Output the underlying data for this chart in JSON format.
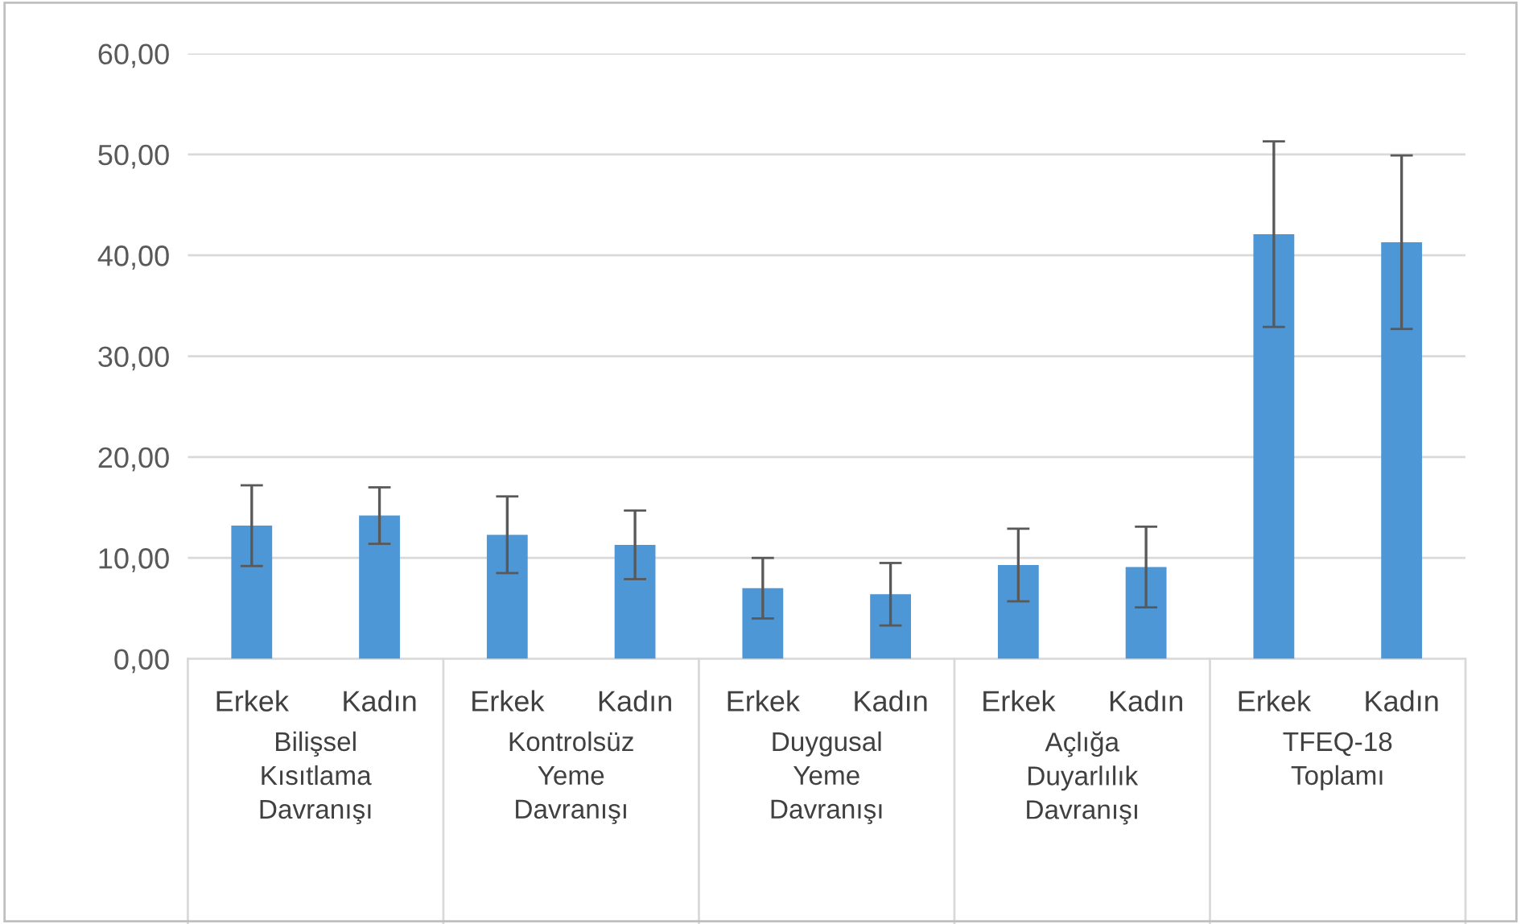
{
  "chart_data": {
    "type": "bar",
    "categories": [
      "Erkek",
      "Kadın",
      "Erkek",
      "Kadın",
      "Erkek",
      "Kadın",
      "Erkek",
      "Kadın",
      "Erkek",
      "Kadın"
    ],
    "values": [
      13.2,
      14.2,
      12.3,
      11.3,
      7.0,
      6.4,
      9.3,
      9.1,
      42.1,
      41.3
    ],
    "errors": [
      4.0,
      2.8,
      3.8,
      3.4,
      3.0,
      3.1,
      3.6,
      4.0,
      9.2,
      8.6
    ],
    "color": "#4e97d6",
    "annotations": [
      "Bilişsel\nKısıtlama\nDavranışı",
      "Kontrolsüz\nYeme\nDavranışı",
      "Duygusal\nYeme\nDavranışı",
      "Açlığa\nDuyarlılık\nDavranışı",
      "TFEQ-18\nToplamı"
    ],
    "ylim": [
      0,
      60
    ],
    "yticks": [
      {
        "value": 0,
        "label": "0,00"
      },
      {
        "value": 10,
        "label": "10,00"
      },
      {
        "value": 20,
        "label": "20,00"
      },
      {
        "value": 30,
        "label": "30,00"
      },
      {
        "value": 40,
        "label": "40,00"
      },
      {
        "value": 50,
        "label": "50,00"
      },
      {
        "value": 60,
        "label": "60,00"
      }
    ],
    "grid": "y",
    "legend": false
  }
}
